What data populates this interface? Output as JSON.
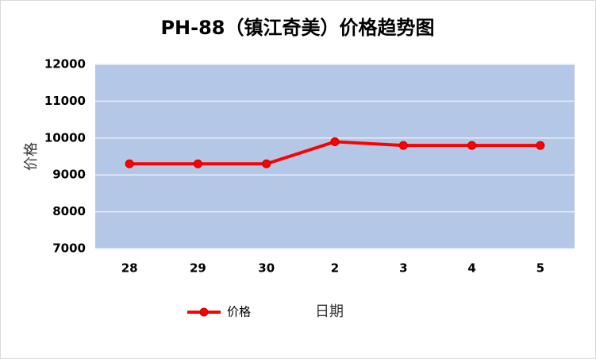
{
  "chart_data": {
    "type": "line",
    "title": "PH-88（镇江奇美）价格趋势图",
    "x_label": "日期",
    "y_label": "价格",
    "categories": [
      "28",
      "29",
      "30",
      "2",
      "3",
      "4",
      "5"
    ],
    "series": [
      {
        "name": "价格",
        "color": "#ff0000",
        "values": [
          9300,
          9300,
          9300,
          9900,
          9800,
          9800,
          9800
        ]
      }
    ],
    "ylim": [
      7000,
      12000
    ],
    "yticks": [
      7000,
      8000,
      9000,
      10000,
      11000,
      12000
    ],
    "grid": true,
    "plot_background": "#b4c7e7",
    "legend": "bottom"
  }
}
